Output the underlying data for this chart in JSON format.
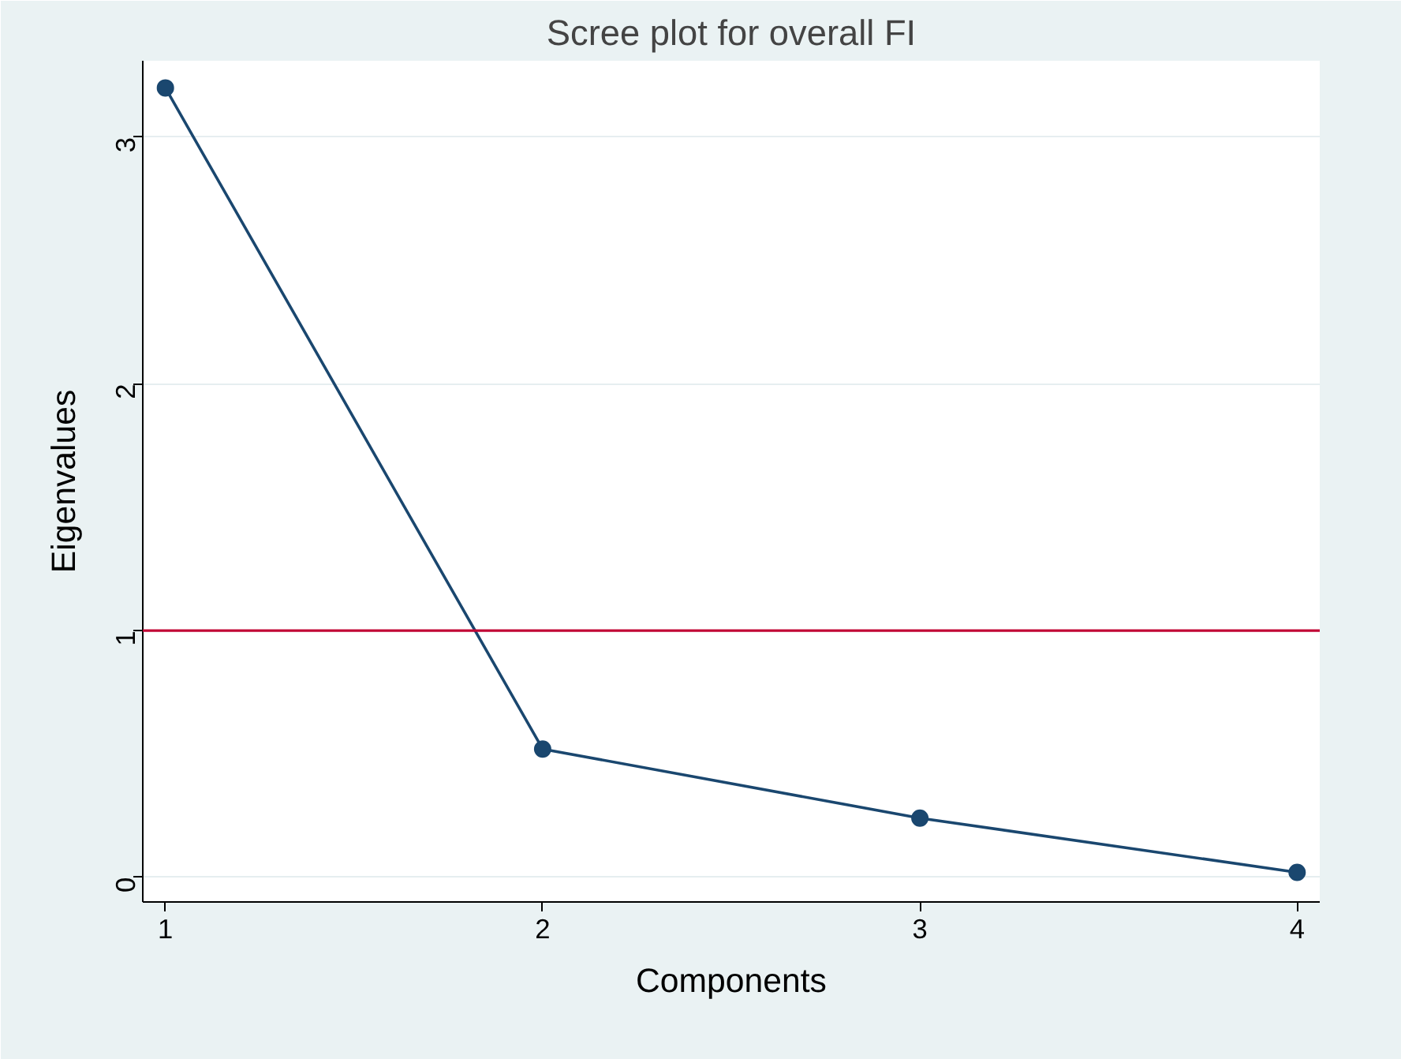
{
  "chart_data": {
    "type": "line",
    "title": "Scree plot for overall FI",
    "xlabel": "Components",
    "ylabel": "Eigenvalues",
    "x": [
      1,
      2,
      3,
      4
    ],
    "series": [
      {
        "color": "#1a476f",
        "values": [
          3.2,
          0.52,
          0.24,
          0.02
        ]
      }
    ],
    "xlim": [
      0.94,
      4.06
    ],
    "ylim": [
      -0.1,
      3.31
    ],
    "xticks": [
      1,
      2,
      3,
      4
    ],
    "yticks": [
      0,
      1,
      2,
      3
    ],
    "grid": "y",
    "marker": "circle",
    "line_style": "solid",
    "ref_lines": [
      {
        "axis": "y",
        "value": 1,
        "color": "#c10534"
      }
    ]
  }
}
